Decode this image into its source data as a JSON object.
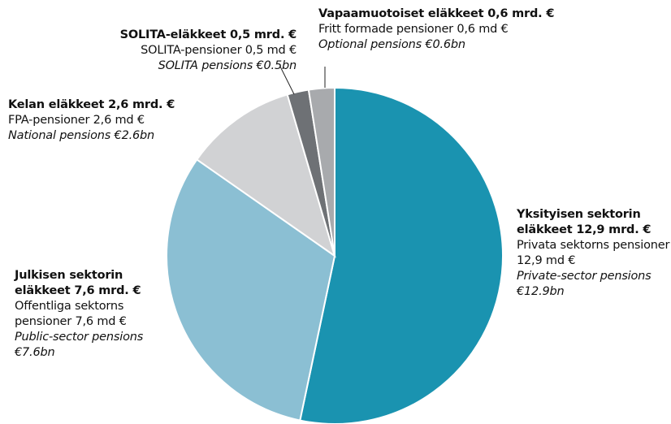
{
  "chart_data": {
    "type": "pie",
    "categories": [
      "Yksityisen sektorin eläkkeet 12,9 mrd. €",
      "Julkisen sektorin eläkkeet 7,6 mrd. €",
      "Kelan eläkkeet 2,6 mrd. €",
      "SOLITA-eläkkeet 0,5 mrd. €",
      "Vapaamuotoiset eläkkeet 0,6 mrd. €"
    ],
    "labels_sv": [
      "Privata sektorns pensioner 12,9 md €",
      "Offentliga sektorns pensioner 7,6 md €",
      "FPA-pensioner 2,6 md €",
      "SOLITA-pensioner 0,5 md €",
      "Fritt formade pensioner 0,6 md €"
    ],
    "labels_en": [
      "Private-sector pensions €12.9bn",
      "Public-sector pensions €7.6bn",
      "National pensions €2.6bn",
      "SOLITA pensions €0.5bn",
      "Optional pensions €0.6bn"
    ],
    "values": [
      12.9,
      7.6,
      2.6,
      0.5,
      0.6
    ],
    "colors": [
      "#1a93b0",
      "#8bbfd3",
      "#d1d2d4",
      "#6e7175",
      "#a8aaad"
    ]
  }
}
